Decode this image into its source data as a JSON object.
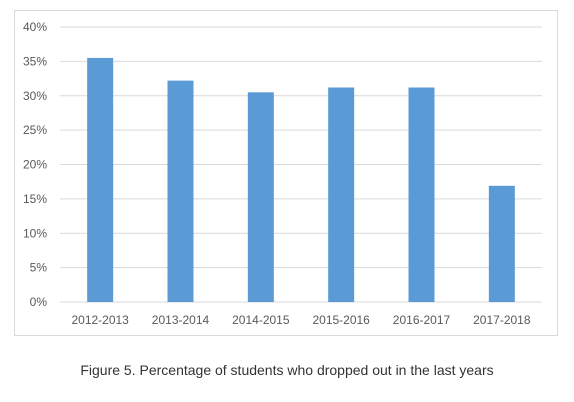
{
  "caption": "Figure 5. Percentage of students who dropped out in the last years",
  "chart_data": {
    "type": "bar",
    "categories": [
      "2012-2013",
      "2013-2014",
      "2014-2015",
      "2015-2016",
      "2016-2017",
      "2017-2018"
    ],
    "values": [
      35.5,
      32.2,
      30.5,
      31.2,
      31.2,
      16.9
    ],
    "y_ticks": [
      "0%",
      "5%",
      "10%",
      "15%",
      "20%",
      "25%",
      "30%",
      "35%",
      "40%"
    ],
    "ylim": [
      0,
      40
    ],
    "unit": "%",
    "grid": true,
    "legend": "none",
    "bar_color": "#5b9bd5",
    "grid_color": "#d9d9d9"
  }
}
